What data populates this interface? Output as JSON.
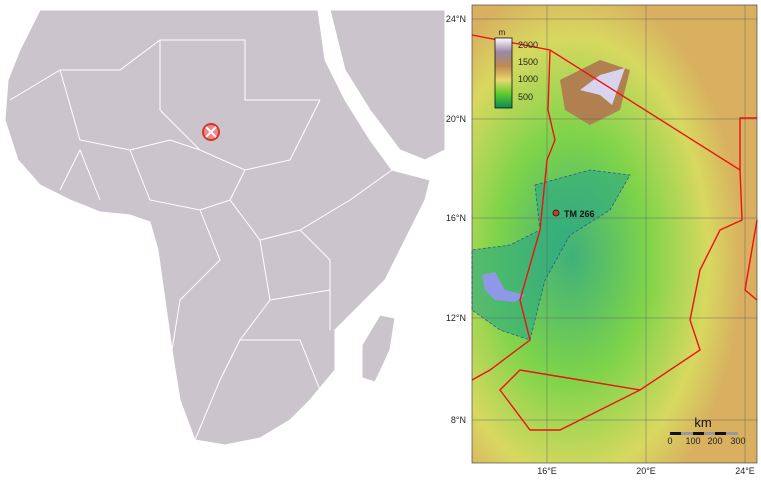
{
  "locator_map": {
    "land_color": "#cbc4cc",
    "border_color": "#ffffff",
    "marker_color": "#d9342b"
  },
  "relief_map": {
    "site_label": "TM 266",
    "border_color": "#ee1111",
    "lake_color": "#8f98e6",
    "latitude_ticks": [
      "24°N",
      "20°N",
      "16°N",
      "12°N",
      "8°N"
    ],
    "longitude_ticks": [
      "16°E",
      "20°E",
      "24°E"
    ],
    "elevation_legend": {
      "unit": "m",
      "ticks": [
        "2000",
        "1500",
        "1000",
        "500"
      ]
    },
    "scale_bar": {
      "unit": "km",
      "ticks": [
        "0",
        "100",
        "200",
        "300"
      ]
    }
  }
}
